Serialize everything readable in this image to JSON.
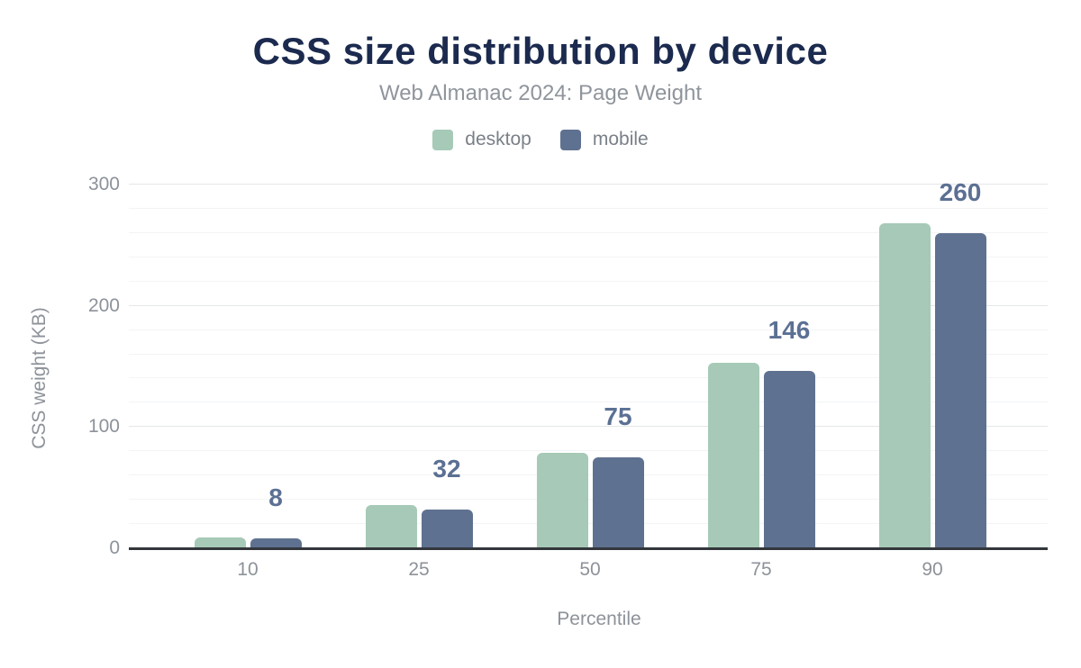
{
  "chart_data": {
    "type": "bar",
    "title": "CSS size distribution by device",
    "subtitle": "Web Almanac 2024: Page Weight",
    "xlabel": "Percentile",
    "ylabel": "CSS weight (KB)",
    "categories": [
      "10",
      "25",
      "50",
      "75",
      "90"
    ],
    "series": [
      {
        "name": "desktop",
        "color": "#a6cab7",
        "values": [
          9,
          36,
          79,
          153,
          268
        ]
      },
      {
        "name": "mobile",
        "color": "#5f7190",
        "values": [
          8,
          32,
          75,
          146,
          260
        ],
        "data_labels": [
          "8",
          "32",
          "75",
          "146",
          "260"
        ]
      }
    ],
    "ylim": [
      0,
      300
    ],
    "yticks": [
      0,
      100,
      200,
      300
    ],
    "minor_grid_step": 20,
    "grid": true,
    "legend_position": "top"
  },
  "colors": {
    "background": "#ffffff",
    "title": "#1b2a4e",
    "subtitle": "#8f959c",
    "legend_text": "#7a8088",
    "tick_label": "#8d9299",
    "value_label": "#5b7093",
    "axis_line": "#33373c",
    "grid_major": "#e4e6e9",
    "grid_minor": "#f3f4f6",
    "desktop_bar": "#a6cab7",
    "mobile_bar": "#5f7190"
  }
}
